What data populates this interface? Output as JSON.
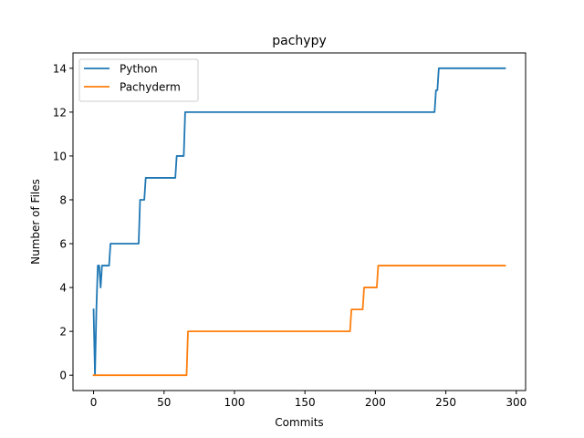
{
  "chart_data": {
    "type": "line",
    "title": "pachypy",
    "xlabel": "Commits",
    "ylabel": "Number of Files",
    "xlim": [
      -14.6,
      306.6
    ],
    "ylim": [
      -0.7,
      14.7
    ],
    "xticks": [
      0,
      50,
      100,
      150,
      200,
      250,
      300
    ],
    "yticks": [
      0,
      2,
      4,
      6,
      8,
      10,
      12,
      14
    ],
    "grid": false,
    "legend_position": "top-left",
    "series": [
      {
        "name": "Python",
        "color": "#1f77b4",
        "points": [
          [
            0,
            3
          ],
          [
            1,
            0
          ],
          [
            2,
            3
          ],
          [
            3,
            5
          ],
          [
            4,
            5
          ],
          [
            5,
            4
          ],
          [
            6,
            5
          ],
          [
            7,
            5
          ],
          [
            11,
            5
          ],
          [
            12,
            6
          ],
          [
            32,
            6
          ],
          [
            33,
            8
          ],
          [
            36,
            8
          ],
          [
            37,
            9
          ],
          [
            58,
            9
          ],
          [
            59,
            10
          ],
          [
            64,
            10
          ],
          [
            65,
            12
          ],
          [
            242,
            12
          ],
          [
            243,
            13
          ],
          [
            244,
            13
          ],
          [
            245,
            14
          ],
          [
            292,
            14
          ]
        ]
      },
      {
        "name": "Pachyderm",
        "color": "#ff7f0e",
        "points": [
          [
            0,
            0
          ],
          [
            66,
            0
          ],
          [
            67,
            2
          ],
          [
            182,
            2
          ],
          [
            183,
            3
          ],
          [
            191,
            3
          ],
          [
            192,
            4
          ],
          [
            201,
            4
          ],
          [
            202,
            5
          ],
          [
            292,
            5
          ]
        ]
      }
    ]
  }
}
